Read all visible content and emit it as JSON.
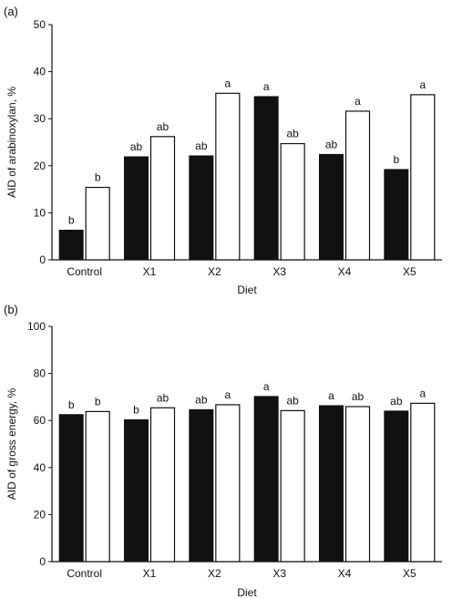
{
  "chart_data": [
    {
      "type": "bar",
      "panel_label": "(a)",
      "xlabel": "Diet",
      "ylabel": "AID of arabinoxylan, %",
      "ylim": [
        0,
        50
      ],
      "yticks": [
        0,
        10,
        20,
        30,
        40,
        50
      ],
      "grid": false,
      "categories": [
        "Control",
        "X1",
        "X2",
        "X3",
        "X4",
        "X5"
      ],
      "series": [
        {
          "style": "filled",
          "color": "#111111",
          "values": [
            6.3,
            21.9,
            22.1,
            34.7,
            22.4,
            19.2
          ],
          "labels": [
            "b",
            "ab",
            "ab",
            "a",
            "ab",
            "b"
          ]
        },
        {
          "style": "open",
          "color": "#ffffff",
          "values": [
            15.4,
            26.2,
            35.4,
            24.7,
            31.6,
            35.1
          ],
          "labels": [
            "b",
            "ab",
            "a",
            "ab",
            "a",
            "a"
          ]
        }
      ]
    },
    {
      "type": "bar",
      "panel_label": "(b)",
      "xlabel": "Diet",
      "ylabel": "AID of gross energy, %",
      "ylim": [
        0,
        100
      ],
      "yticks": [
        0,
        20,
        40,
        60,
        80,
        100
      ],
      "grid": false,
      "categories": [
        "Control",
        "X1",
        "X2",
        "X3",
        "X4",
        "X5"
      ],
      "series": [
        {
          "style": "filled",
          "color": "#111111",
          "values": [
            62.5,
            60.3,
            64.6,
            70.2,
            66.3,
            64.0
          ],
          "labels": [
            "b",
            "b",
            "ab",
            "a",
            "a",
            "ab"
          ]
        },
        {
          "style": "open",
          "color": "#ffffff",
          "values": [
            63.8,
            65.4,
            66.7,
            64.2,
            65.9,
            67.3
          ],
          "labels": [
            "b",
            "ab",
            "a",
            "ab",
            "ab",
            "a"
          ]
        }
      ]
    }
  ]
}
